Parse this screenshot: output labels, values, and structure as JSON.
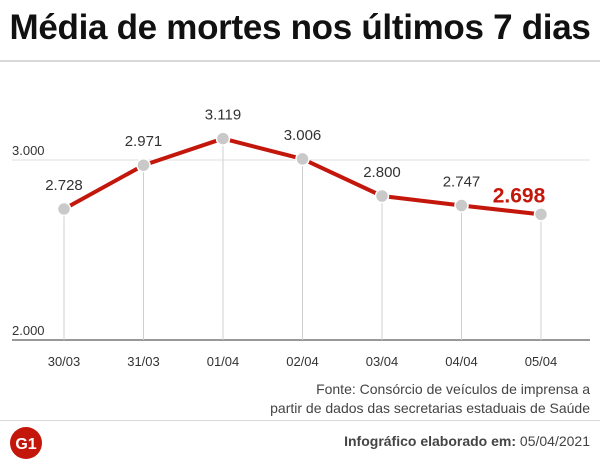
{
  "title": "Média de mortes nos últimos 7 dias",
  "source": {
    "label": "Fonte:",
    "text_line1": "Consórcio de veículos de imprensa a",
    "text_line2": "partir de dados das secretarias estaduais de Saúde"
  },
  "credit": {
    "label": "Infográfico elaborado em:",
    "date": "05/04/2021"
  },
  "logo_text": "G1",
  "colors": {
    "line": "#c4170c",
    "point": "#c9c9c9",
    "highlight_label": "#c4170c",
    "brand": "#c4170c"
  },
  "chart_data": {
    "type": "line",
    "categories": [
      "30/03",
      "31/03",
      "01/04",
      "02/04",
      "03/04",
      "04/04",
      "05/04"
    ],
    "values": [
      2728,
      2971,
      3119,
      3006,
      2800,
      2747,
      2698
    ],
    "value_labels": [
      "2.728",
      "2.971",
      "3.119",
      "3.006",
      "2.800",
      "2.747",
      "2.698"
    ],
    "yticks": [
      2000,
      3000
    ],
    "ytick_labels": [
      "2.000",
      "3.000"
    ],
    "ylim": [
      2000,
      3000
    ],
    "highlight_last": true
  }
}
